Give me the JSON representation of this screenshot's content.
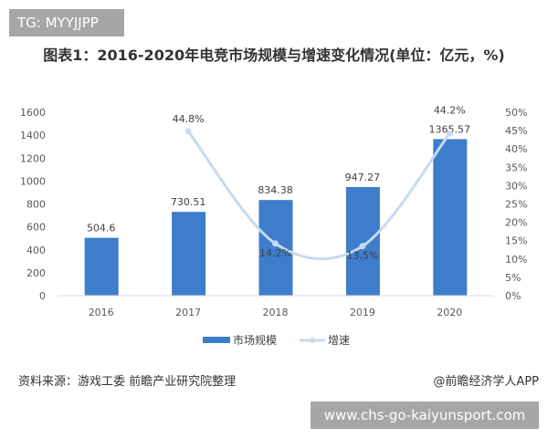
{
  "badge": "TG: MYYJJPP",
  "footer": {
    "source": "资料来源：游戏工委 前瞻产业研究院整理",
    "brand": "@前瞻经济学人APP",
    "url": "www.chs-go-kaiyunsport.com"
  },
  "chart_data": {
    "type": "bar+line",
    "title": "图表1：2016-2020年电竞市场规模与增速变化情况(单位：亿元，%)",
    "categories": [
      "2016",
      "2017",
      "2018",
      "2019",
      "2020"
    ],
    "y_left": {
      "range": [
        0,
        1600
      ],
      "ticks": [
        "0",
        "200",
        "400",
        "600",
        "800",
        "1000",
        "1200",
        "1400",
        "1600"
      ]
    },
    "y_right": {
      "range": [
        0,
        50
      ],
      "ticks": [
        "0%",
        "5%",
        "10%",
        "15%",
        "20%",
        "25%",
        "30%",
        "35%",
        "40%",
        "45%",
        "50%"
      ]
    },
    "series": [
      {
        "name": "市场规模",
        "type": "bar",
        "axis": "left",
        "color": "#3e7dcc",
        "values": [
          504.6,
          730.51,
          834.38,
          947.27,
          1365.57
        ],
        "labels": [
          "504.6",
          "730.51",
          "834.38",
          "947.27",
          "1365.57"
        ]
      },
      {
        "name": "增速",
        "type": "line",
        "axis": "right",
        "color": "#c6daf0",
        "smooth": true,
        "values": [
          null,
          44.8,
          14.2,
          13.5,
          44.2
        ],
        "labels": [
          "",
          "44.8%",
          "14.2%",
          "13.5%",
          "44.2%"
        ]
      }
    ],
    "legend": "bottom",
    "grid": false
  }
}
